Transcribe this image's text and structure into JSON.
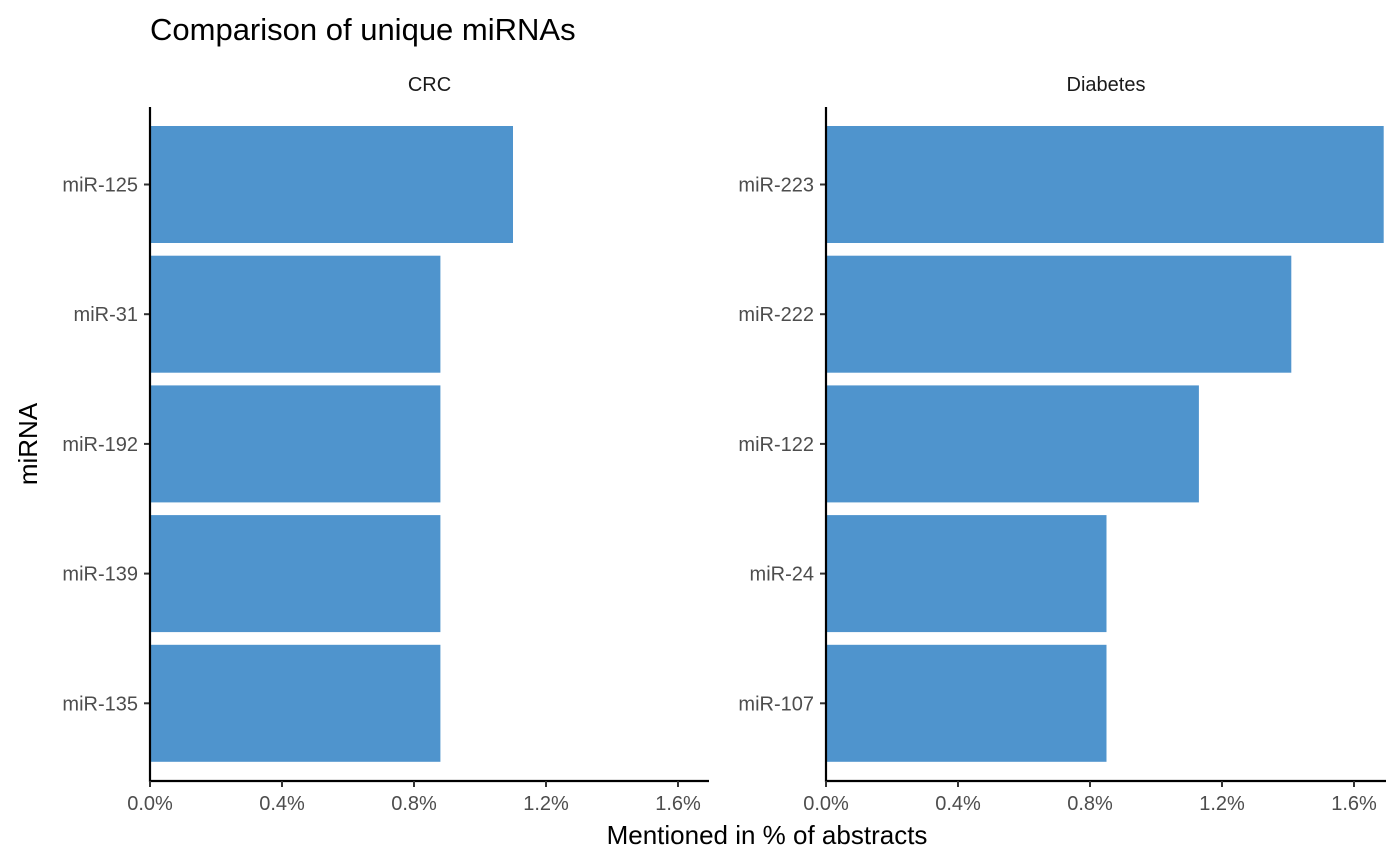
{
  "chart_data": {
    "type": "bar",
    "orientation": "horizontal",
    "title": "Comparison of unique miRNAs",
    "xlabel": "Mentioned in % of abstracts",
    "ylabel": "miRNA",
    "xlim": [
      0,
      1.6
    ],
    "x_ticks": [
      0,
      0.4,
      0.8,
      1.2,
      1.6
    ],
    "x_tick_labels": [
      "0.0%",
      "0.4%",
      "0.8%",
      "1.2%",
      "1.6%"
    ],
    "grid": false,
    "legend": "none",
    "bar_color": "#4f94cd",
    "facets": [
      {
        "name": "CRC",
        "categories": [
          "miR-125",
          "miR-31",
          "miR-192",
          "miR-139",
          "miR-135"
        ],
        "values": [
          1.1,
          0.88,
          0.88,
          0.88,
          0.88
        ]
      },
      {
        "name": "Diabetes",
        "categories": [
          "miR-223",
          "miR-222",
          "miR-122",
          "miR-24",
          "miR-107"
        ],
        "values": [
          1.69,
          1.41,
          1.13,
          0.85,
          0.85
        ]
      }
    ]
  }
}
